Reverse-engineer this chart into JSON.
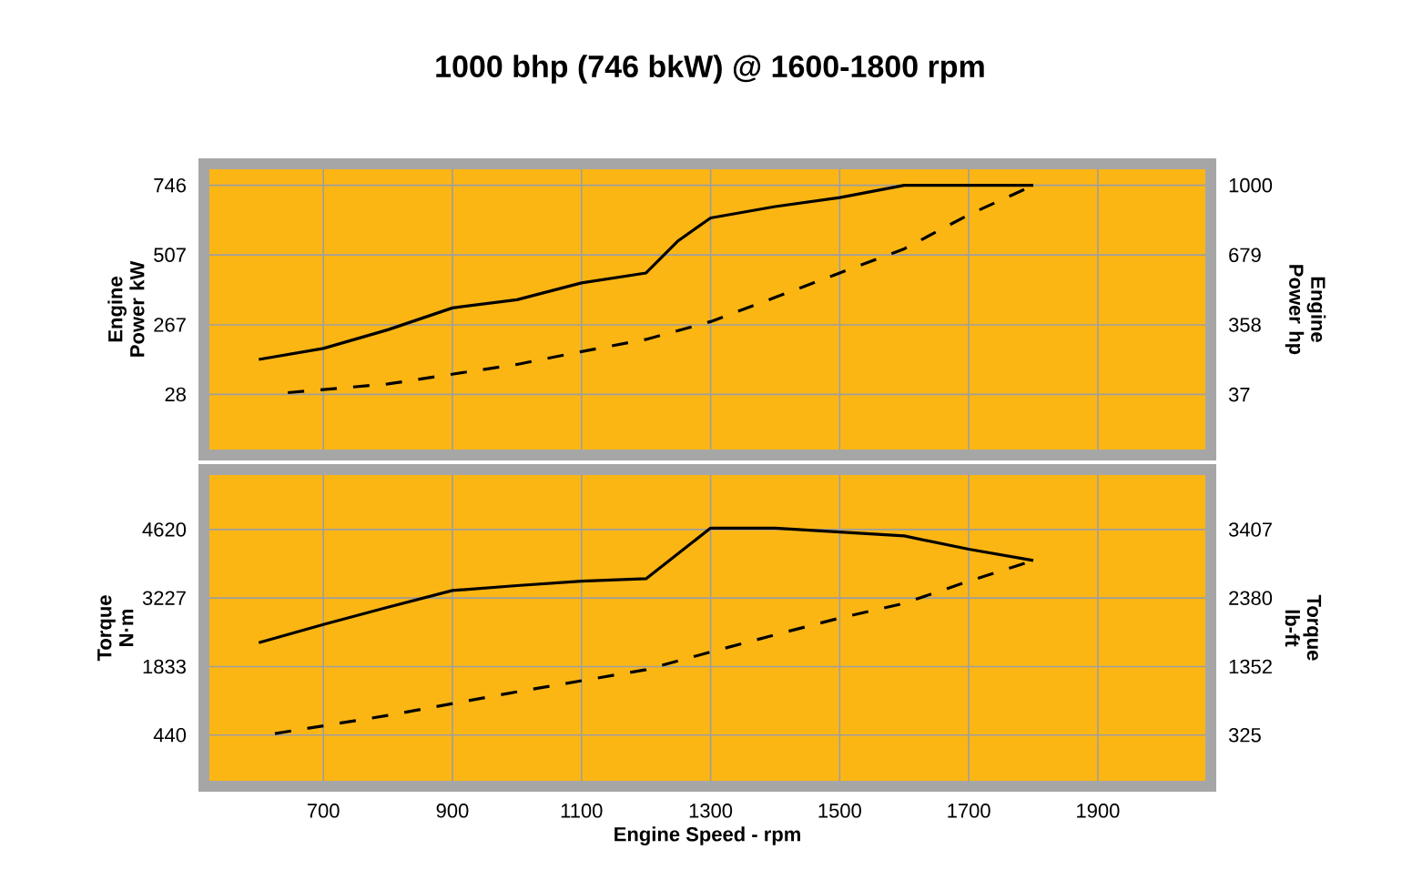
{
  "chart_data": [
    {
      "type": "line",
      "title": "1000 bhp (746 bkW) @ 1600-1800 rpm",
      "ylabel": "Engine Power kW",
      "y2label": "Engine Power hp",
      "xlim": [
        515,
        2075
      ],
      "xticks": [
        700,
        900,
        1100,
        1300,
        1500,
        1700,
        1900
      ],
      "ylim": [
        -180,
        820
      ],
      "yticks": [
        28,
        267,
        507,
        746
      ],
      "y2lim": [
        -241,
        1099
      ],
      "y2ticks": [
        37,
        358,
        679,
        1000
      ],
      "grid": true,
      "tick_labels": "y",
      "series": [
        {
          "color": "#000000",
          "line_style": "solid",
          "x": [
            600,
            700,
            800,
            900,
            1000,
            1100,
            1200,
            1250,
            1300,
            1400,
            1500,
            1600,
            1800
          ],
          "values": [
            148,
            186,
            250,
            325,
            353,
            411,
            445,
            556,
            634,
            673,
            704,
            746,
            746
          ]
        },
        {
          "color": "#000000",
          "line_style": "dashed",
          "x": [
            645,
            800,
            1000,
            1100,
            1200,
            1300,
            1400,
            1500,
            1600,
            1700,
            1800
          ],
          "values": [
            34,
            64,
            131,
            175,
            217,
            278,
            361,
            445,
            528,
            645,
            746
          ]
        }
      ]
    },
    {
      "type": "line",
      "xlabel": "Engine Speed - rpm",
      "ylabel": "Torque N·m",
      "y2label": "Torque lb-ft",
      "xlim": [
        515,
        2075
      ],
      "xticks": [
        700,
        900,
        1100,
        1300,
        1500,
        1700,
        1900
      ],
      "ylim": [
        -600,
        5840
      ],
      "yticks": [
        440,
        1833,
        3227,
        4620
      ],
      "y2lim": [
        -442,
        4307
      ],
      "y2ticks": [
        325,
        1352,
        2380,
        3407
      ],
      "grid": true,
      "series": [
        {
          "color": "#000000",
          "line_style": "solid",
          "x": [
            600,
            700,
            800,
            900,
            1000,
            1100,
            1200,
            1300,
            1400,
            1500,
            1600,
            1700,
            1800
          ],
          "values": [
            2320,
            2690,
            3040,
            3380,
            3480,
            3570,
            3620,
            4650,
            4650,
            4570,
            4490,
            4220,
            3990
          ]
        },
        {
          "color": "#000000",
          "line_style": "dashed",
          "x": [
            625,
            800,
            1000,
            1200,
            1300,
            1400,
            1500,
            1600,
            1700,
            1800
          ],
          "values": [
            470,
            840,
            1320,
            1770,
            2130,
            2480,
            2820,
            3120,
            3570,
            3990
          ]
        }
      ]
    }
  ]
}
